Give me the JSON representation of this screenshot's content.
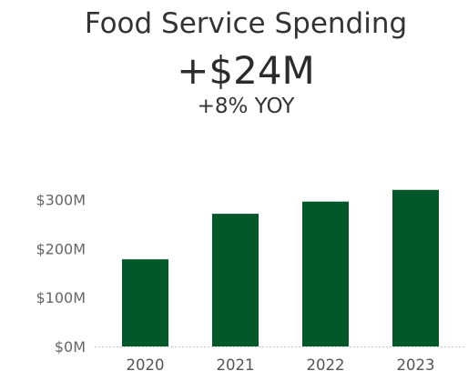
{
  "header": {
    "title": "Food Service Spending",
    "kpi_value": "+$24M",
    "kpi_change": "+8% YOY"
  },
  "colors": {
    "bar": "#03582a",
    "axis": "#c8c8c8",
    "text": "#333333"
  },
  "chart_data": {
    "type": "bar",
    "title": "",
    "xlabel": "",
    "ylabel": "",
    "categories": [
      "2020",
      "2021",
      "2022",
      "2023"
    ],
    "values": [
      178,
      271,
      296,
      320
    ],
    "ylim": [
      0,
      340
    ],
    "y_ticks": [
      0,
      100,
      200,
      300
    ],
    "y_tick_labels": [
      "$0M",
      "$100M",
      "$200M",
      "$300M"
    ],
    "grid": false,
    "legend": "none"
  }
}
